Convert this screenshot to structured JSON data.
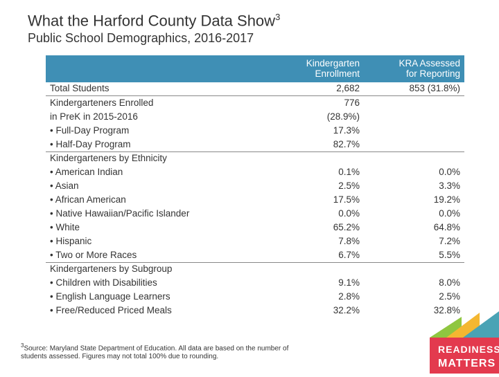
{
  "title": "What the Harford County Data Show",
  "title_sup": "3",
  "subtitle": "Public School Demographics, 2016-2017",
  "headers": {
    "col1": "",
    "col2_l1": "Kindergarten",
    "col2_l2": "Enrollment",
    "col3_l1": "KRA Assessed",
    "col3_l2": "for Reporting"
  },
  "header_bg": "#3f8fb5",
  "rows": [
    {
      "label": "Total Students",
      "enroll": "2,682",
      "kra": "853 (31.8%)",
      "rule": true,
      "indent": false
    },
    {
      "label": "Kindergarteners Enrolled",
      "enroll": "776",
      "kra": "",
      "rule": false,
      "indent": false
    },
    {
      "label": "in PreK in 2015-2016",
      "enroll": "(28.9%)",
      "kra": "",
      "rule": false,
      "indent": false
    },
    {
      "label": "•  Full-Day Program",
      "enroll": "17.3%",
      "kra": "",
      "rule": false,
      "indent": true
    },
    {
      "label": "•  Half-Day Program",
      "enroll": "82.7%",
      "kra": "",
      "rule": true,
      "indent": true
    },
    {
      "label": "Kindergarteners by Ethnicity",
      "enroll": "",
      "kra": "",
      "rule": false,
      "indent": false
    },
    {
      "label": "•  American Indian",
      "enroll": "0.1%",
      "kra": "0.0%",
      "rule": false,
      "indent": true
    },
    {
      "label": "•  Asian",
      "enroll": "2.5%",
      "kra": "3.3%",
      "rule": false,
      "indent": true
    },
    {
      "label": "•  African American",
      "enroll": "17.5%",
      "kra": "19.2%",
      "rule": false,
      "indent": true
    },
    {
      "label": "•  Native Hawaiian/Pacific Islander",
      "enroll": "0.0%",
      "kra": "0.0%",
      "rule": false,
      "indent": true
    },
    {
      "label": "•  White",
      "enroll": "65.2%",
      "kra": "64.8%",
      "rule": false,
      "indent": true
    },
    {
      "label": "•  Hispanic",
      "enroll": "7.8%",
      "kra": "7.2%",
      "rule": false,
      "indent": true
    },
    {
      "label": "•  Two or More Races",
      "enroll": "6.7%",
      "kra": "5.5%",
      "rule": true,
      "indent": true
    },
    {
      "label": "Kindergarteners by Subgroup",
      "enroll": "",
      "kra": "",
      "rule": false,
      "indent": false
    },
    {
      "label": "•  Children with Disabilities",
      "enroll": "9.1%",
      "kra": "8.0%",
      "rule": false,
      "indent": true
    },
    {
      "label": "•  English Language Learners",
      "enroll": "2.8%",
      "kra": "2.5%",
      "rule": false,
      "indent": true
    },
    {
      "label": "•  Free/Reduced Priced Meals",
      "enroll": "32.2%",
      "kra": "32.8%",
      "rule": false,
      "indent": true
    }
  ],
  "footnote_sup": "3",
  "footnote": "Source: Maryland State Department of Education.  All data are based on the number of students assessed. Figures may not total 100% due to rounding.",
  "logo": {
    "text_l1": "READINESS",
    "text_l2": "MATTERS",
    "bg": "#e33a4e",
    "tri1": "#8fc640",
    "tri2": "#f4b731",
    "tri3": "#4aa3b5"
  }
}
